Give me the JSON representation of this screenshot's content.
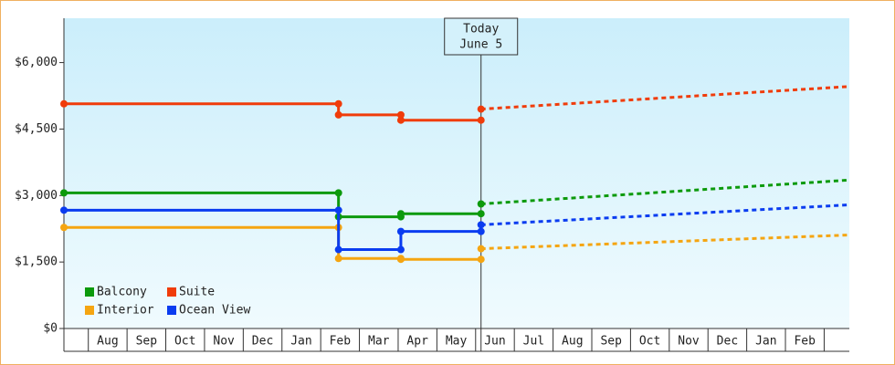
{
  "chart_data": {
    "type": "line",
    "categories": [
      "Aug",
      "Sep",
      "Oct",
      "Nov",
      "Dec",
      "Jan",
      "Feb",
      "Mar",
      "Apr",
      "May",
      "Jun",
      "Jul",
      "Aug",
      "Sep",
      "Oct",
      "Nov",
      "Dec",
      "Jan",
      "Feb"
    ],
    "xlim": [
      0.37,
      20.65
    ],
    "ylim": [
      0,
      7000
    ],
    "yticks": [
      {
        "value": 0,
        "label": "$0"
      },
      {
        "value": 1500,
        "label": "$1,500"
      },
      {
        "value": 3000,
        "label": "$3,000"
      },
      {
        "value": 4500,
        "label": "$4,500"
      },
      {
        "value": 6000,
        "label": "$6,000"
      }
    ],
    "annotation": {
      "x": 11.14,
      "text": [
        "Today",
        "June 5"
      ]
    },
    "legend": "lower left",
    "series": [
      {
        "name": "Balcony",
        "color": "#0c9a0c",
        "x": [
          0.37,
          7.46,
          7.46,
          9.07,
          9.07,
          11.14
        ],
        "values": [
          3060,
          3060,
          2520,
          2520,
          2590,
          2590
        ],
        "forecast": {
          "x": [
            11.14,
            20.65
          ],
          "values": [
            2810,
            3350
          ]
        }
      },
      {
        "name": "Suite",
        "color": "#f03c0a",
        "x": [
          0.37,
          7.46,
          7.46,
          9.07,
          9.07,
          11.14
        ],
        "values": [
          5070,
          5070,
          4820,
          4820,
          4700,
          4700
        ],
        "forecast": {
          "x": [
            11.14,
            20.65
          ],
          "values": [
            4950,
            5460
          ]
        }
      },
      {
        "name": "Interior",
        "color": "#f5a511",
        "x": [
          0.37,
          7.46,
          7.46,
          9.07,
          9.07,
          11.14
        ],
        "values": [
          2280,
          2280,
          1580,
          1580,
          1560,
          1560
        ],
        "forecast": {
          "x": [
            11.14,
            20.65
          ],
          "values": [
            1800,
            2110
          ]
        }
      },
      {
        "name": "Ocean View",
        "color": "#0a3cf0",
        "x": [
          0.37,
          7.46,
          7.46,
          9.07,
          9.07,
          11.14
        ],
        "values": [
          2670,
          2670,
          1780,
          1780,
          2190,
          2190
        ],
        "forecast": {
          "x": [
            11.14,
            20.65
          ],
          "values": [
            2340,
            2790
          ]
        }
      }
    ]
  }
}
